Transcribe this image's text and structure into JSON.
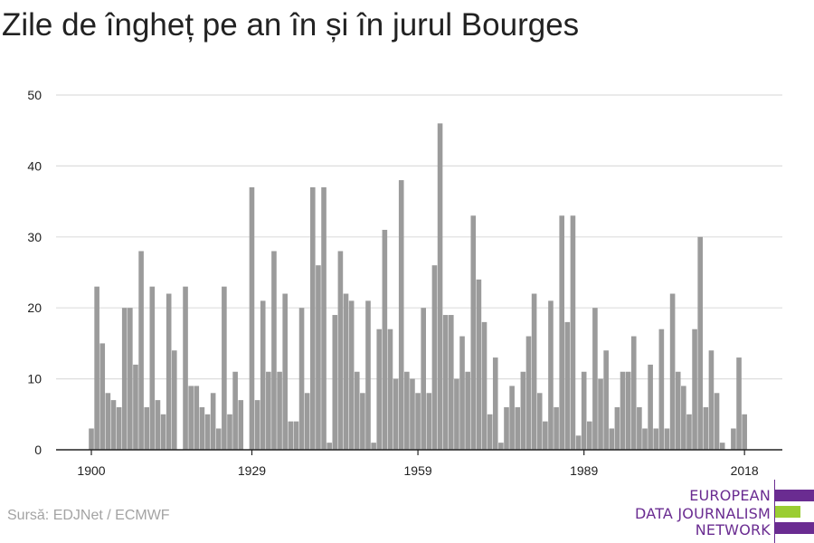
{
  "title": "Zile de îngheț pe an în și în jurul Bourges",
  "source": "Sursă: EDJNet / ECMWF",
  "logo": {
    "lines": [
      "EUROPEAN",
      "DATA JOURNALISM",
      "NETWORK"
    ],
    "colors": {
      "purple": "#6a2c91",
      "green": "#9acd32"
    }
  },
  "chart_data": {
    "type": "bar",
    "title": "Zile de îngheț pe an în și în jurul Bourges",
    "xlabel": "",
    "ylabel": "",
    "x_start": 1900,
    "x_end": 2018,
    "xticks": [
      1900,
      1929,
      1959,
      1989,
      2018
    ],
    "yticks": [
      0,
      10,
      20,
      30,
      40,
      50
    ],
    "ylim": [
      0,
      50
    ],
    "grid": true,
    "bar_color": "#9b9b9b",
    "values": [
      3,
      23,
      15,
      8,
      7,
      6,
      20,
      20,
      12,
      28,
      6,
      23,
      7,
      5,
      22,
      14,
      0,
      23,
      9,
      9,
      6,
      5,
      8,
      3,
      23,
      5,
      11,
      7,
      0,
      37,
      7,
      21,
      11,
      28,
      11,
      22,
      4,
      4,
      20,
      8,
      37,
      26,
      37,
      1,
      19,
      28,
      22,
      21,
      11,
      8,
      21,
      1,
      17,
      31,
      17,
      10,
      38,
      11,
      10,
      8,
      20,
      8,
      26,
      46,
      19,
      19,
      10,
      16,
      11,
      33,
      24,
      18,
      5,
      13,
      1,
      6,
      9,
      6,
      11,
      16,
      22,
      8,
      4,
      21,
      6,
      33,
      18,
      33,
      2,
      11,
      4,
      20,
      10,
      14,
      3,
      6,
      11,
      11,
      16,
      6,
      3,
      12,
      3,
      17,
      3,
      22,
      11,
      9,
      5,
      17,
      30,
      6,
      14,
      8,
      1,
      0,
      3,
      13,
      5
    ]
  }
}
